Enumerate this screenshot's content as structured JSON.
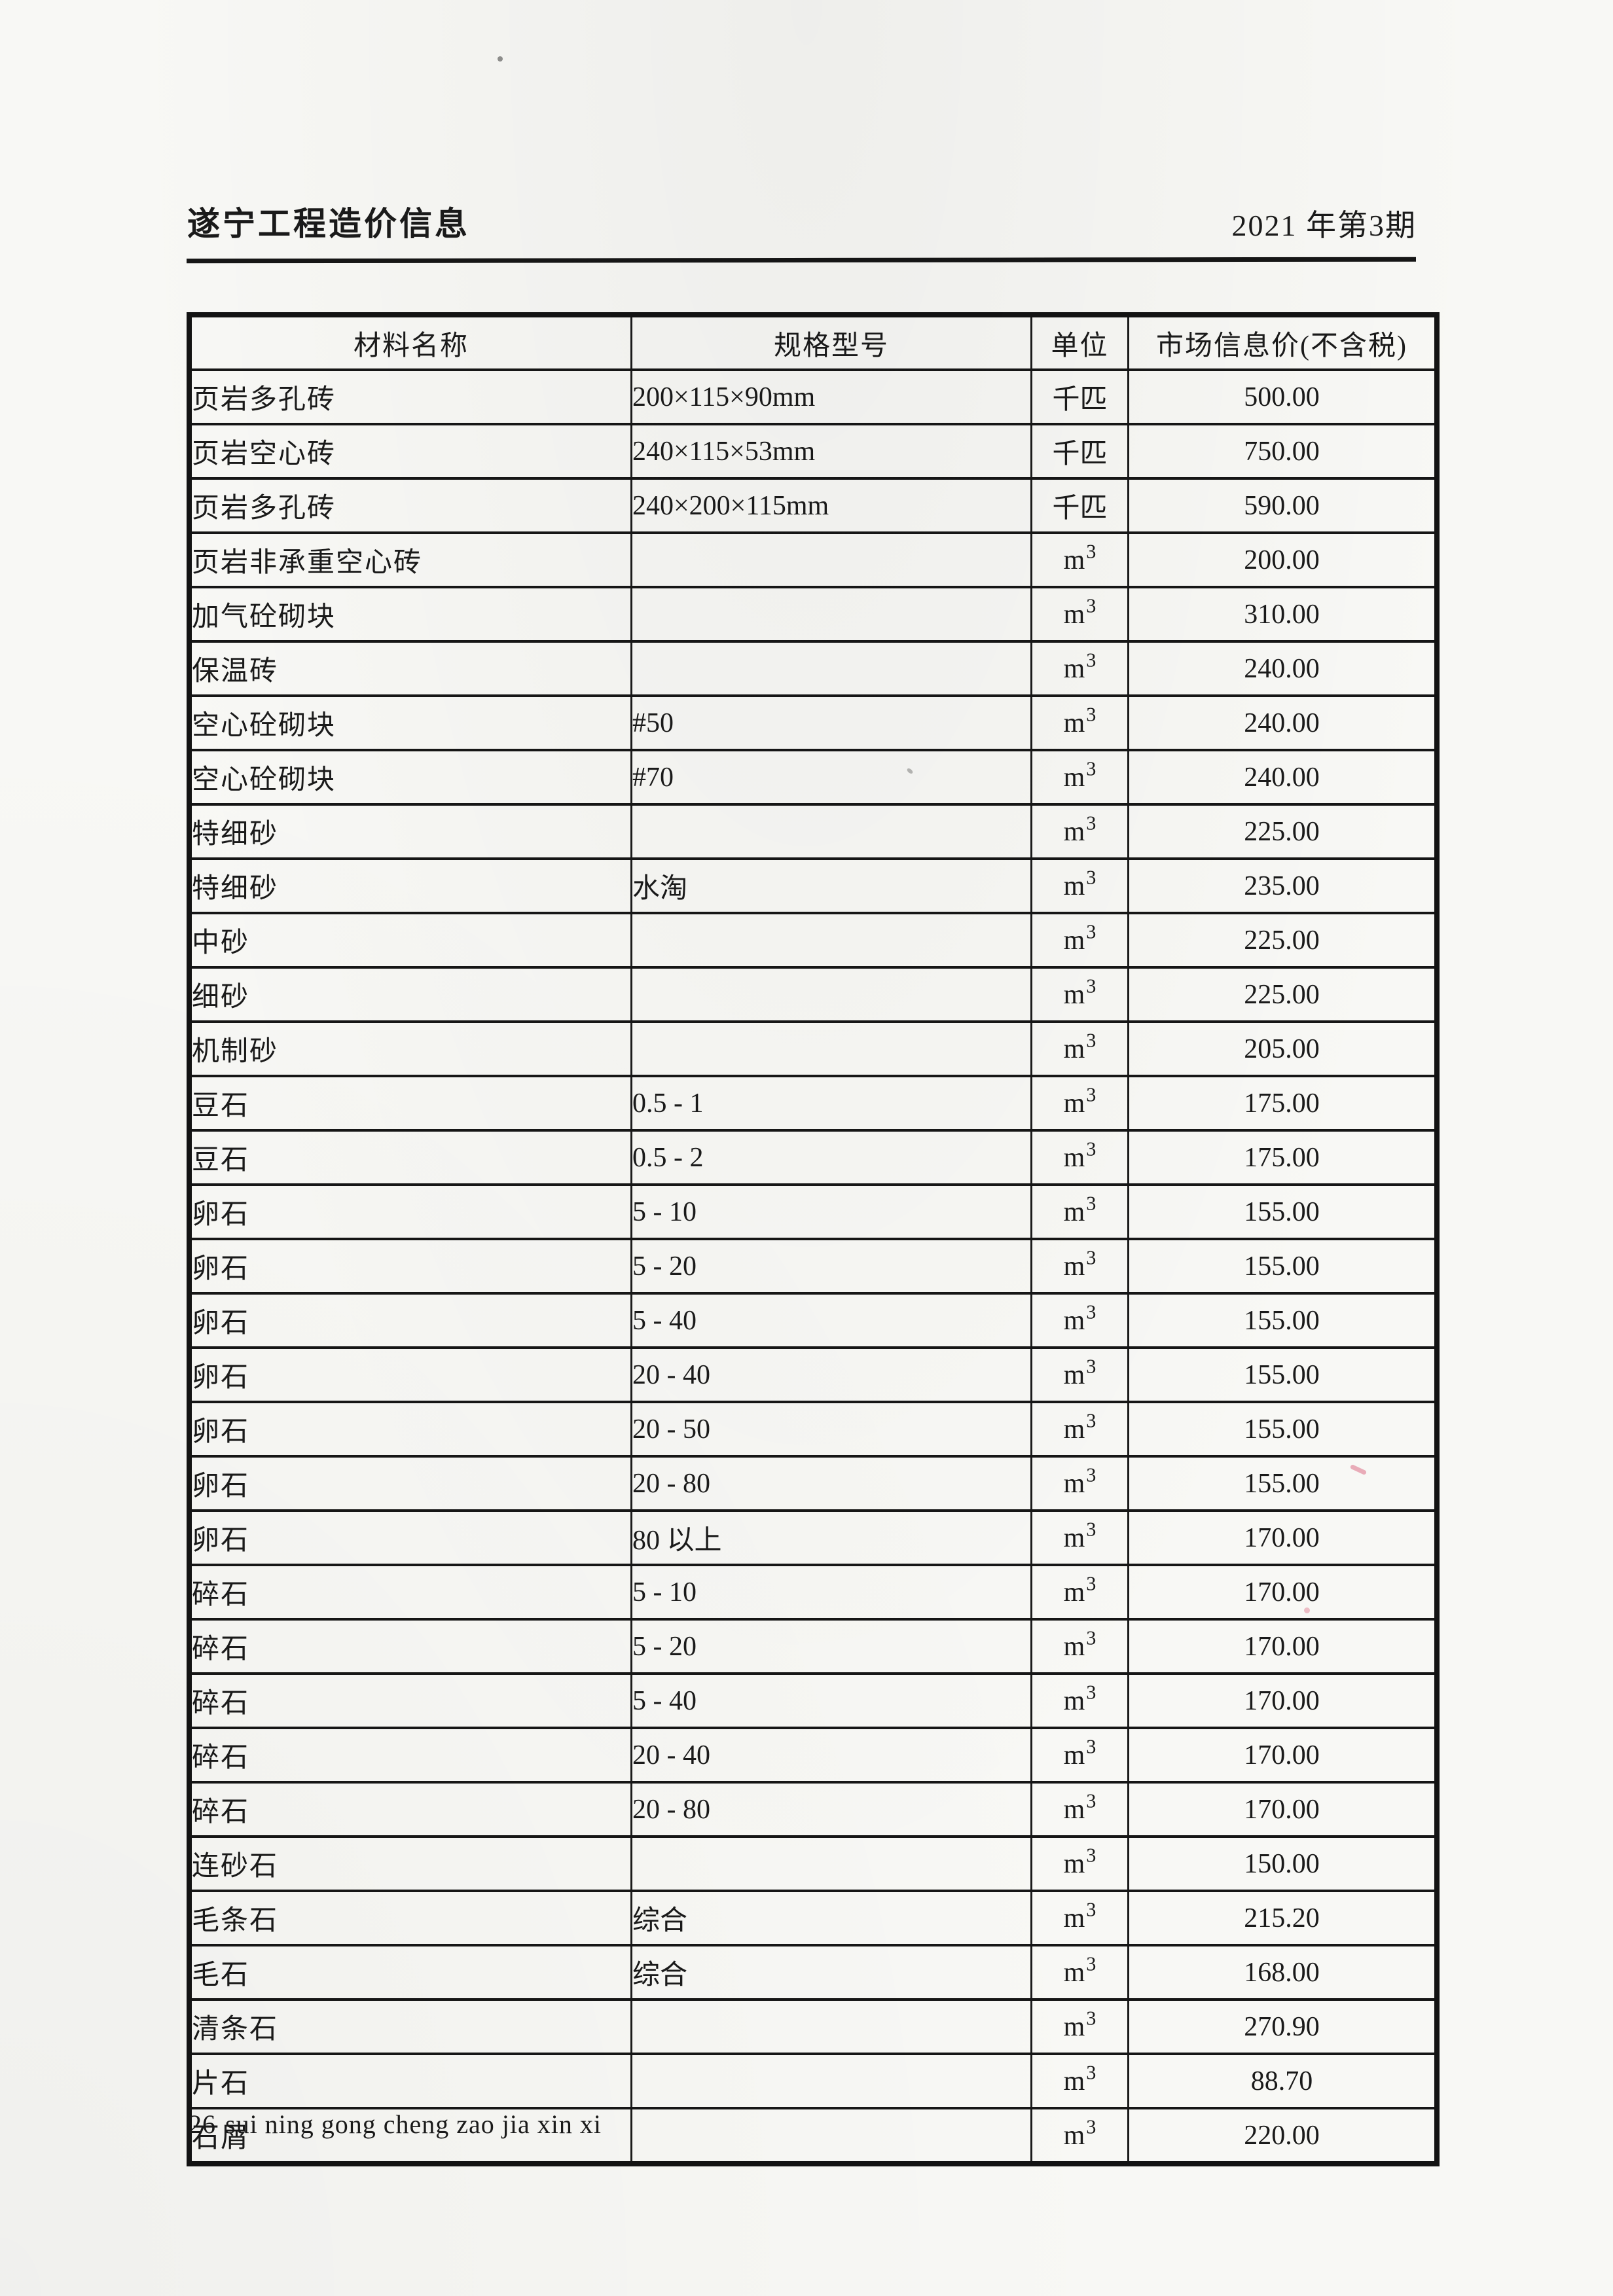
{
  "header": {
    "title": "遂宁工程造价信息",
    "issue": "2021 年第3期"
  },
  "table": {
    "columns": [
      "材料名称",
      "规格型号",
      "单位",
      "市场信息价(不含税)"
    ],
    "rows": [
      {
        "name": "页岩多孔砖",
        "spec": "200×115×90mm",
        "unit": "千匹",
        "price": "500.00"
      },
      {
        "name": "页岩空心砖",
        "spec": "240×115×53mm",
        "unit": "千匹",
        "price": "750.00"
      },
      {
        "name": "页岩多孔砖",
        "spec": "240×200×115mm",
        "unit": "千匹",
        "price": "590.00"
      },
      {
        "name": "页岩非承重空心砖",
        "spec": "",
        "unit": "m³",
        "price": "200.00"
      },
      {
        "name": "加气砼砌块",
        "spec": "",
        "unit": "m³",
        "price": "310.00"
      },
      {
        "name": "保温砖",
        "spec": "",
        "unit": "m³",
        "price": "240.00"
      },
      {
        "name": "空心砼砌块",
        "spec": "#50",
        "unit": "m³",
        "price": "240.00"
      },
      {
        "name": "空心砼砌块",
        "spec": "#70",
        "unit": "m³",
        "price": "240.00"
      },
      {
        "name": "特细砂",
        "spec": "",
        "unit": "m³",
        "price": "225.00"
      },
      {
        "name": "特细砂",
        "spec": "水淘",
        "unit": "m³",
        "price": "235.00"
      },
      {
        "name": "中砂",
        "spec": "",
        "unit": "m³",
        "price": "225.00"
      },
      {
        "name": "细砂",
        "spec": "",
        "unit": "m³",
        "price": "225.00"
      },
      {
        "name": "机制砂",
        "spec": "",
        "unit": "m³",
        "price": "205.00"
      },
      {
        "name": "豆石",
        "spec": "0.5 - 1",
        "unit": "m³",
        "price": "175.00"
      },
      {
        "name": "豆石",
        "spec": "0.5 - 2",
        "unit": "m³",
        "price": "175.00"
      },
      {
        "name": "卵石",
        "spec": "5 - 10",
        "unit": "m³",
        "price": "155.00"
      },
      {
        "name": "卵石",
        "spec": "5 - 20",
        "unit": "m³",
        "price": "155.00"
      },
      {
        "name": "卵石",
        "spec": "5 - 40",
        "unit": "m³",
        "price": "155.00"
      },
      {
        "name": "卵石",
        "spec": "20 - 40",
        "unit": "m³",
        "price": "155.00"
      },
      {
        "name": "卵石",
        "spec": "20 - 50",
        "unit": "m³",
        "price": "155.00"
      },
      {
        "name": "卵石",
        "spec": "20 - 80",
        "unit": "m³",
        "price": "155.00"
      },
      {
        "name": "卵石",
        "spec": "80 以上",
        "unit": "m³",
        "price": "170.00"
      },
      {
        "name": "碎石",
        "spec": "5 - 10",
        "unit": "m³",
        "price": "170.00"
      },
      {
        "name": "碎石",
        "spec": "5 - 20",
        "unit": "m³",
        "price": "170.00"
      },
      {
        "name": "碎石",
        "spec": "5 - 40",
        "unit": "m³",
        "price": "170.00"
      },
      {
        "name": "碎石",
        "spec": "20 - 40",
        "unit": "m³",
        "price": "170.00"
      },
      {
        "name": "碎石",
        "spec": "20 - 80",
        "unit": "m³",
        "price": "170.00"
      },
      {
        "name": "连砂石",
        "spec": "",
        "unit": "m³",
        "price": "150.00"
      },
      {
        "name": "毛条石",
        "spec": "综合",
        "unit": "m³",
        "price": "215.20"
      },
      {
        "name": "毛石",
        "spec": "综合",
        "unit": "m³",
        "price": "168.00"
      },
      {
        "name": "清条石",
        "spec": "",
        "unit": "m³",
        "price": "270.90"
      },
      {
        "name": "片石",
        "spec": "",
        "unit": "m³",
        "price": "88.70"
      },
      {
        "name": "石屑",
        "spec": "",
        "unit": "m³",
        "price": "220.00"
      }
    ]
  },
  "footer": {
    "page_number": "26",
    "pinyin": "sui ning gong cheng zao jia xin xi"
  }
}
